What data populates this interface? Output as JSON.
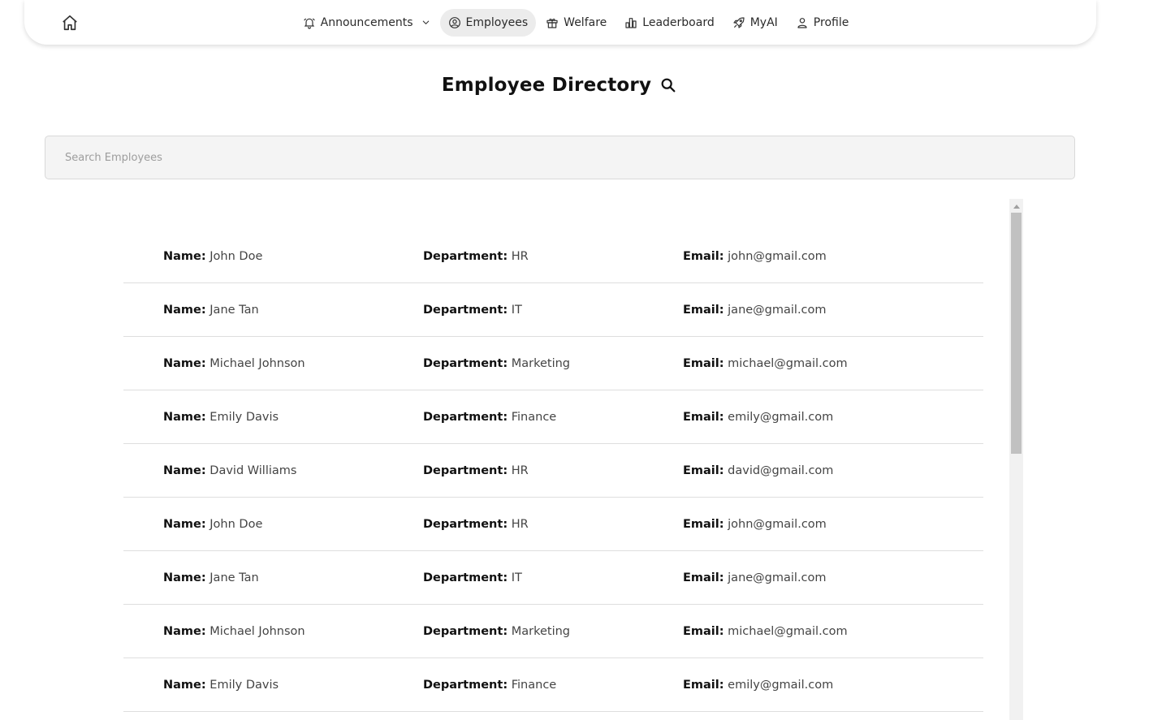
{
  "nav": {
    "items": [
      {
        "label": "Announcements",
        "icon": "bell-icon",
        "has_dropdown": true,
        "active": false
      },
      {
        "label": "Employees",
        "icon": "user-circle-icon",
        "active": true
      },
      {
        "label": "Welfare",
        "icon": "gift-icon",
        "active": false
      },
      {
        "label": "Leaderboard",
        "icon": "bar-chart-icon",
        "active": false
      },
      {
        "label": "MyAI",
        "icon": "rocket-icon",
        "active": false
      },
      {
        "label": "Profile",
        "icon": "person-icon",
        "active": false
      }
    ]
  },
  "page": {
    "title": "Employee Directory"
  },
  "search": {
    "placeholder": "Search Employees",
    "value": ""
  },
  "labels": {
    "name": "Name:",
    "department": "Department:",
    "email": "Email:"
  },
  "employees": [
    {
      "name": "John Doe",
      "department": "HR",
      "email": "john@gmail.com"
    },
    {
      "name": "Jane Tan",
      "department": "IT",
      "email": "jane@gmail.com"
    },
    {
      "name": "Michael Johnson",
      "department": "Marketing",
      "email": "michael@gmail.com"
    },
    {
      "name": "Emily Davis",
      "department": "Finance",
      "email": "emily@gmail.com"
    },
    {
      "name": "David Williams",
      "department": "HR",
      "email": "david@gmail.com"
    },
    {
      "name": "John Doe",
      "department": "HR",
      "email": "john@gmail.com"
    },
    {
      "name": "Jane Tan",
      "department": "IT",
      "email": "jane@gmail.com"
    },
    {
      "name": "Michael Johnson",
      "department": "Marketing",
      "email": "michael@gmail.com"
    },
    {
      "name": "Emily Davis",
      "department": "Finance",
      "email": "emily@gmail.com"
    }
  ]
}
